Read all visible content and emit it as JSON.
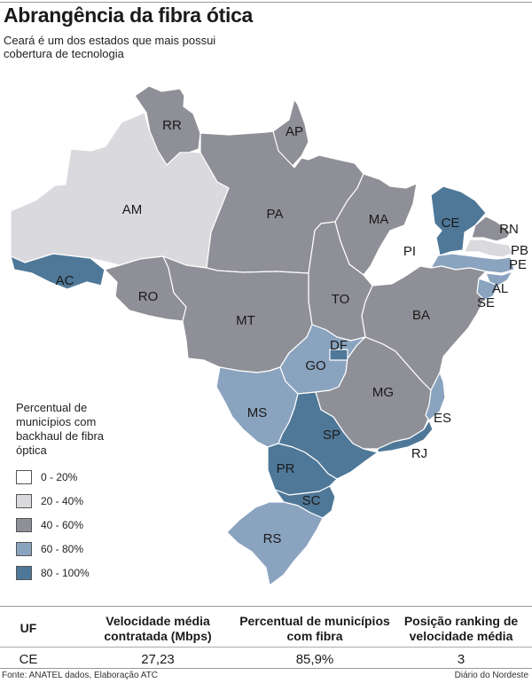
{
  "header": {
    "title": "Abrangência da fibra ótica",
    "subtitle": "Ceará é um dos estados que mais possui cobertura de tecnologia"
  },
  "colors": {
    "range_0_20": "#ffffff",
    "range_20_40": "#d9d9de",
    "range_40_60": "#8f8f97",
    "range_60_80": "#8aa3bf",
    "range_80_100": "#4f7898",
    "border": "#ffffff"
  },
  "map": {
    "states": [
      {
        "uf": "RR",
        "range": "range_40_60"
      },
      {
        "uf": "AP",
        "range": "range_40_60"
      },
      {
        "uf": "AM",
        "range": "range_20_40"
      },
      {
        "uf": "PA",
        "range": "range_40_60"
      },
      {
        "uf": "MA",
        "range": "range_40_60"
      },
      {
        "uf": "CE",
        "range": "range_80_100"
      },
      {
        "uf": "RN",
        "range": "range_40_60"
      },
      {
        "uf": "PB",
        "range": "range_20_40"
      },
      {
        "uf": "PE",
        "range": "range_60_80"
      },
      {
        "uf": "PI",
        "range": "range_0_20"
      },
      {
        "uf": "AL",
        "range": "range_60_80"
      },
      {
        "uf": "SE",
        "range": "range_60_80"
      },
      {
        "uf": "AC",
        "range": "range_80_100"
      },
      {
        "uf": "RO",
        "range": "range_40_60"
      },
      {
        "uf": "MT",
        "range": "range_40_60"
      },
      {
        "uf": "TO",
        "range": "range_40_60"
      },
      {
        "uf": "BA",
        "range": "range_40_60"
      },
      {
        "uf": "DF",
        "range": "range_80_100"
      },
      {
        "uf": "GO",
        "range": "range_60_80"
      },
      {
        "uf": "MG",
        "range": "range_40_60"
      },
      {
        "uf": "MS",
        "range": "range_60_80"
      },
      {
        "uf": "ES",
        "range": "range_60_80"
      },
      {
        "uf": "SP",
        "range": "range_80_100"
      },
      {
        "uf": "RJ",
        "range": "range_80_100"
      },
      {
        "uf": "PR",
        "range": "range_80_100"
      },
      {
        "uf": "SC",
        "range": "range_80_100"
      },
      {
        "uf": "RS",
        "range": "range_60_80"
      }
    ]
  },
  "legend": {
    "title": "Percentual de municípios com backhaul de fibra óptica",
    "items": [
      {
        "label": "0 - 20%",
        "color": "#ffffff"
      },
      {
        "label": "20 - 40%",
        "color": "#d9d9de"
      },
      {
        "label": "40 - 60%",
        "color": "#8f8f97"
      },
      {
        "label": "60 - 80%",
        "color": "#8aa3bf"
      },
      {
        "label": "80 - 100%",
        "color": "#4f7898"
      }
    ]
  },
  "table": {
    "headers": [
      "UF",
      "Velocidade média contratada (Mbps)",
      "Percentual de municípios com fibra",
      "Posição ranking de velocidade média"
    ],
    "row": [
      "CE",
      "27,23",
      "85,9%",
      "3"
    ]
  },
  "footer": {
    "source": "Fonte: ANATEL dados, Elaboração ATC",
    "credit": "Diário do Nordeste"
  }
}
